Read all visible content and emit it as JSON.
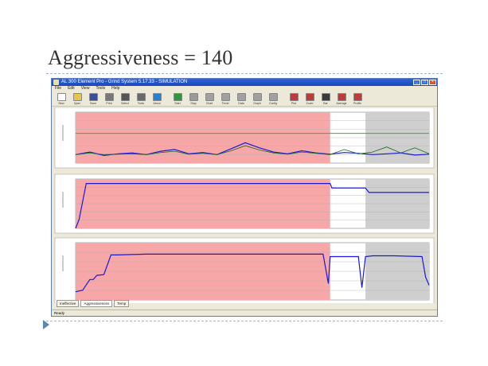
{
  "slide": {
    "title": "Aggressiveness = 140"
  },
  "window": {
    "title": "AL 300 Element Pro - Grind System 5.17.33 - SIMULATION",
    "menu": [
      "File",
      "Edit",
      "View",
      "Tools",
      "Help"
    ],
    "toolbar": [
      {
        "label": "New",
        "icon": "new-file-icon",
        "color": "#ffffff"
      },
      {
        "label": "Open",
        "icon": "open-folder-icon",
        "color": "#e8c44a"
      },
      {
        "label": "Save",
        "icon": "save-icon",
        "color": "#3a4fa0"
      },
      {
        "label": "Print",
        "icon": "print-icon",
        "color": "#777777"
      },
      {
        "label": "Select",
        "icon": "select-icon",
        "color": "#555555"
      },
      {
        "label": "Tools",
        "icon": "wrench-icon",
        "color": "#6a6a6a"
      },
      {
        "label": "About",
        "icon": "info-icon",
        "color": "#2a7fd0"
      },
      {
        "label": "Start",
        "icon": "start-icon",
        "color": "#2a9a3a"
      },
      {
        "label": "Stop",
        "icon": "stop-icon",
        "color": "#9a9a9a"
      },
      {
        "label": "Chart",
        "icon": "chart-icon",
        "color": "#a0a0a0"
      },
      {
        "label": "Trend",
        "icon": "trend-icon",
        "color": "#a0a0a0"
      },
      {
        "label": "Data",
        "icon": "data-icon",
        "color": "#a0a0a0"
      },
      {
        "label": "Graph",
        "icon": "graph-icon",
        "color": "#a0a0a0"
      },
      {
        "label": "Config",
        "icon": "config-icon",
        "color": "#a0a0a0"
      },
      {
        "label": "Plot",
        "icon": "plot-icon",
        "color": "#c03a3a"
      },
      {
        "label": "Zoom",
        "icon": "zoom-icon",
        "color": "#c03a3a"
      },
      {
        "label": "Bar",
        "icon": "bar-icon",
        "color": "#3a3a3a"
      },
      {
        "label": "Average",
        "icon": "average-icon",
        "color": "#c03a3a"
      },
      {
        "label": "Profile",
        "icon": "profile-icon",
        "color": "#c03a3a"
      }
    ],
    "tabs": [
      "Ineffective",
      "Aggressiveness",
      "Temp"
    ],
    "status": "Ready"
  },
  "colors": {
    "active_region": "#f7a7a7",
    "inactive_region": "#cfcfcf",
    "trace": "#1a1ad6",
    "limit_line": "#22bb22",
    "secondary_trace": "#1a6a1a"
  },
  "chart_data": [
    {
      "type": "line",
      "title": "",
      "x": [
        0,
        4,
        8,
        12,
        16,
        20,
        24,
        28,
        32,
        36,
        40,
        44,
        48,
        52,
        56,
        60,
        64,
        68,
        72,
        76,
        80,
        84,
        88,
        92,
        96,
        100
      ],
      "series": [
        {
          "values": [
            2.0,
            2.6,
            1.8,
            2.2,
            2.4,
            2.0,
            2.8,
            3.2,
            2.2,
            2.5,
            2.0,
            3.4,
            4.8,
            3.6,
            2.6,
            2.2,
            2.9,
            2.4,
            2.1,
            2.5,
            2.3,
            2.0,
            2.2,
            2.4,
            1.9,
            2.1
          ]
        },
        {
          "values": [
            2.0,
            2.4,
            2.0,
            2.1,
            2.2,
            2.0,
            2.5,
            2.8,
            2.1,
            2.3,
            2.0,
            2.9,
            4.1,
            3.1,
            2.4,
            2.1,
            2.6,
            2.3,
            2.0,
            3.2,
            2.2,
            2.6,
            3.8,
            2.4,
            3.6,
            2.2
          ]
        }
      ],
      "limit": 7,
      "ylim": [
        0,
        12
      ],
      "active_until": 0.72,
      "inactive_from": 0.82
    },
    {
      "type": "line",
      "title": "",
      "x": [
        0,
        1,
        3,
        10,
        30,
        50,
        72,
        72.5,
        82,
        83,
        100
      ],
      "series": [
        {
          "values": [
            0,
            2,
            10,
            10,
            10,
            10,
            10,
            9.0,
            9.0,
            8.0,
            8.0
          ]
        }
      ],
      "ylim": [
        0,
        11
      ],
      "active_until": 0.72,
      "inactive_from": 0.82
    },
    {
      "type": "line",
      "title": "",
      "x": [
        0,
        2,
        4,
        5,
        6,
        8,
        10,
        12,
        20,
        30,
        40,
        50,
        60,
        70,
        71.5,
        72,
        73,
        80,
        81,
        82,
        84,
        90,
        98,
        99,
        100
      ],
      "series": [
        {
          "values": [
            1.0,
            1.2,
            2.5,
            2.5,
            3.0,
            3.1,
            5.5,
            5.5,
            5.6,
            5.6,
            5.6,
            5.6,
            5.6,
            5.6,
            2.0,
            5.3,
            5.3,
            5.3,
            1.5,
            5.3,
            5.4,
            5.4,
            5.3,
            2.8,
            1.8
          ]
        }
      ],
      "ylim": [
        0,
        7
      ],
      "active_until": 0.72,
      "inactive_from": 0.82
    }
  ]
}
